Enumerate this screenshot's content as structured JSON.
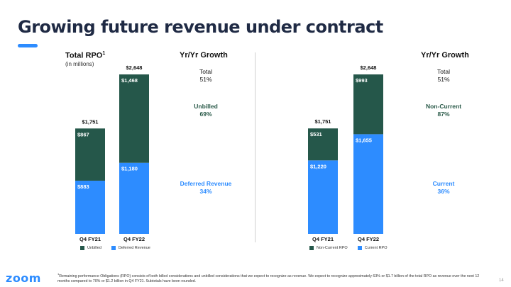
{
  "title": "Growing future revenue under contract",
  "left_panel": {
    "heading": "Total RPO",
    "heading_sup": "1",
    "subheading": "(in millions)",
    "growth_title": "Yr/Yr Growth",
    "growth": {
      "total_label": "Total",
      "total_value": "51%",
      "upper_label": "Unbilled",
      "upper_value": "69%",
      "lower_label": "Deferred Revenue",
      "lower_value": "34%"
    },
    "legend": [
      "Unbilled",
      "Deferred Revenue"
    ]
  },
  "right_panel": {
    "growth_title": "Yr/Yr Growth",
    "growth": {
      "total_label": "Total",
      "total_value": "51%",
      "upper_label": "Non-Current",
      "upper_value": "87%",
      "lower_label": "Current",
      "lower_value": "36%"
    },
    "legend": [
      "Non-Current RPO",
      "Current RPO"
    ]
  },
  "colors": {
    "dark": "#25574a",
    "blue": "#2d8cff"
  },
  "chart_data": [
    {
      "type": "bar",
      "stacked": true,
      "categories": [
        "Q4 FY21",
        "Q4 FY22"
      ],
      "series": [
        {
          "name": "Deferred Revenue",
          "values": [
            883,
            1180
          ],
          "labels": [
            "$883",
            "$1,180"
          ]
        },
        {
          "name": "Unbilled",
          "values": [
            867,
            1468
          ],
          "labels": [
            "$867",
            "$1,468"
          ]
        }
      ],
      "totals": [
        "$1,751",
        "$2,648"
      ],
      "ylim": [
        0,
        2648
      ]
    },
    {
      "type": "bar",
      "stacked": true,
      "categories": [
        "Q4 FY21",
        "Q4 FY22"
      ],
      "series": [
        {
          "name": "Current RPO",
          "values": [
            1220,
            1655
          ],
          "labels": [
            "$1,220",
            "$1,655"
          ]
        },
        {
          "name": "Non-Current RPO",
          "values": [
            531,
            993
          ],
          "labels": [
            "$531",
            "$993"
          ]
        }
      ],
      "totals": [
        "$1,751",
        "$2,648"
      ],
      "ylim": [
        0,
        2648
      ]
    }
  ],
  "footnote_sup": "1",
  "footnote": "Remaining performance Obligations (RPO) consists of both billed considerations and unbilled considerations that we expect to recognize as revenue. We expect to recognize approximately 63% or $1.7 billion of the total RPO as revenue over the next 12 months compared to 70% or $1.2 billion in Q4 FY21. Subtotals have been rounded.",
  "logo": "zoom",
  "page_number": "14"
}
